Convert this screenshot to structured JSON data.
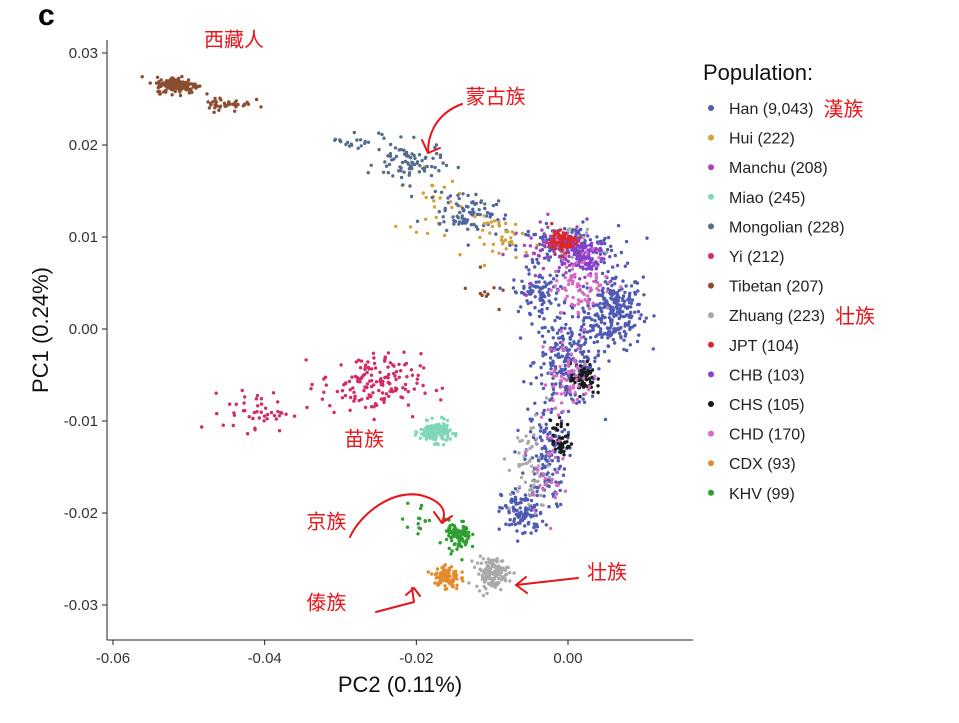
{
  "chart_data": {
    "type": "scatter",
    "panel_label": "c",
    "xlabel": "PC2 (0.11%)",
    "ylabel": "PC1 (0.24%)",
    "xlim": [
      -0.0605,
      0.0165
    ],
    "ylim": [
      -0.0335,
      0.0313
    ],
    "x_ticks": [
      -0.06,
      -0.04,
      -0.02,
      0.0
    ],
    "x_tick_labels": [
      "-0.06",
      "-0.04",
      "-0.02",
      "0.00"
    ],
    "y_ticks": [
      0.03,
      0.02,
      0.01,
      0.0,
      -0.01,
      -0.02,
      -0.03
    ],
    "y_tick_labels": [
      "0.03",
      "0.02",
      "0.01",
      "0.00",
      "-0.01",
      "-0.02",
      "-0.03"
    ],
    "grid": false,
    "legend_title": "Population:",
    "legend_position": "right",
    "series": [
      {
        "name": "Han (9,043)",
        "color": "#4f5ab3",
        "note": "漢族",
        "clusters": [
          [
            0.006,
            0.002,
            0.0035,
            0.0038,
            260
          ],
          [
            0.0,
            -0.0035,
            0.004,
            0.0045,
            230
          ],
          [
            0.0,
            0.009,
            0.006,
            0.002,
            180
          ],
          [
            -0.003,
            -0.014,
            0.0025,
            0.005,
            140
          ],
          [
            -0.006,
            -0.02,
            0.0025,
            0.0025,
            110
          ],
          [
            -0.004,
            0.004,
            0.003,
            0.002,
            90
          ],
          [
            -0.012,
            0.012,
            0.004,
            0.002,
            35
          ]
        ]
      },
      {
        "name": "Hui (222)",
        "color": "#d3a13a",
        "clusters": [
          [
            -0.008,
            0.01,
            0.004,
            0.002,
            40
          ],
          [
            -0.018,
            0.014,
            0.004,
            0.003,
            25
          ]
        ]
      },
      {
        "name": "Manchu (208)",
        "color": "#ad41b8",
        "clusters": [
          [
            -0.002,
            0.0085,
            0.005,
            0.003,
            45
          ]
        ]
      },
      {
        "name": "Miao (245)",
        "color": "#7fd6b8",
        "note": "苗族",
        "clusters": [
          [
            -0.0175,
            -0.0112,
            0.0018,
            0.001,
            150
          ]
        ]
      },
      {
        "name": "Mongolian (228)",
        "color": "#546d8c",
        "note": "蒙古族",
        "clusters": [
          [
            -0.021,
            0.018,
            0.004,
            0.002,
            80
          ],
          [
            -0.014,
            0.013,
            0.004,
            0.002,
            50
          ],
          [
            -0.028,
            0.0205,
            0.003,
            0.001,
            20
          ]
        ]
      },
      {
        "name": "Yi (212)",
        "color": "#d42b62",
        "clusters": [
          [
            -0.026,
            -0.006,
            0.006,
            0.003,
            150
          ],
          [
            -0.041,
            -0.009,
            0.004,
            0.002,
            45
          ],
          [
            -0.0015,
            0.0095,
            0.0012,
            0.001,
            20
          ]
        ]
      },
      {
        "name": "Tibetan (207)",
        "color": "#8b4d2f",
        "note": "西藏人",
        "clusters": [
          [
            -0.0515,
            0.0265,
            0.0025,
            0.0008,
            160
          ],
          [
            -0.045,
            0.0245,
            0.003,
            0.0008,
            40
          ],
          [
            -0.011,
            0.004,
            0.002,
            0.002,
            10
          ]
        ]
      },
      {
        "name": "Zhuang (223)",
        "color": "#a8aaa9",
        "note": "壮族",
        "clusters": [
          [
            -0.01,
            -0.0265,
            0.002,
            0.0015,
            130
          ],
          [
            -0.005,
            -0.015,
            0.0025,
            0.005,
            60
          ],
          [
            0.001,
            0.009,
            0.003,
            0.002,
            25
          ]
        ]
      },
      {
        "name": "JPT (104)",
        "color": "#e0262c",
        "clusters": [
          [
            -0.0005,
            0.0095,
            0.0015,
            0.001,
            100
          ]
        ]
      },
      {
        "name": "CHB (103)",
        "color": "#8a3fd1",
        "clusters": [
          [
            0.002,
            0.008,
            0.0025,
            0.002,
            100
          ]
        ]
      },
      {
        "name": "CHS (105)",
        "color": "#1a1a1a",
        "clusters": [
          [
            0.002,
            -0.0055,
            0.0015,
            0.0015,
            60
          ],
          [
            -0.001,
            -0.012,
            0.0012,
            0.002,
            45
          ]
        ]
      },
      {
        "name": "CHD (170)",
        "color": "#d86ac4",
        "clusters": [
          [
            0.002,
            0.005,
            0.0035,
            0.003,
            80
          ],
          [
            0.0,
            -0.005,
            0.003,
            0.004,
            60
          ],
          [
            -0.003,
            -0.015,
            0.002,
            0.004,
            30
          ]
        ]
      },
      {
        "name": "CDX (93)",
        "color": "#e58a2a",
        "note": "傣族",
        "clusters": [
          [
            -0.016,
            -0.027,
            0.0015,
            0.0012,
            93
          ]
        ]
      },
      {
        "name": "KHV (99)",
        "color": "#2f9e33",
        "note": "京族",
        "clusters": [
          [
            -0.0145,
            -0.0225,
            0.0015,
            0.0015,
            85
          ],
          [
            -0.02,
            -0.021,
            0.002,
            0.002,
            14
          ]
        ]
      }
    ],
    "annotations": [
      {
        "text": "西藏人",
        "x": -0.048,
        "y": 0.0307,
        "target": "Tibetan"
      },
      {
        "text": "蒙古族",
        "x": -0.0135,
        "y": 0.0245,
        "target": "Mongolian"
      },
      {
        "text": "苗族",
        "x": -0.0295,
        "y": -0.0127,
        "target": "Miao"
      },
      {
        "text": "京族",
        "x": -0.0345,
        "y": -0.0217,
        "target": "KHV"
      },
      {
        "text": "傣族",
        "x": -0.0345,
        "y": -0.0305,
        "target": "CDX"
      },
      {
        "text": "壮族",
        "x": 0.0025,
        "y": -0.0272,
        "target": "Zhuang"
      }
    ]
  }
}
